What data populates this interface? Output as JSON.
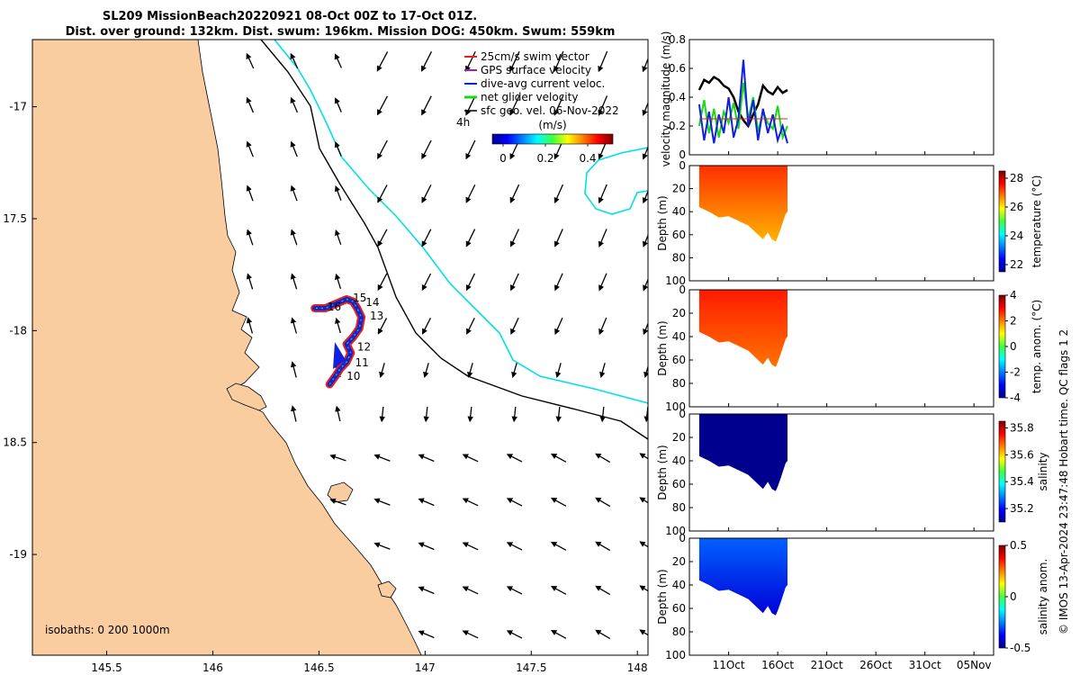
{
  "header": {
    "title_line1": "SL209 MissionBeach20220921 08-Oct 00Z to 17-Oct 01Z.",
    "title_line2": "Dist. over ground: 132km. Dist. swum: 196km. Mission DOG: 450km. Swum: 559km"
  },
  "colors": {
    "land": "#f9cda0",
    "isobath_200": "#000000",
    "isobath_1000": "#00e0e8",
    "swim_vector": "#e8201a",
    "gps_velocity": "#9a20c0",
    "current_velocity": "#1020e0",
    "net_velocity": "#18d818",
    "geo_velocity": "#000000",
    "line_color_black": "#000000"
  },
  "map": {
    "xlim": [
      145.15,
      148.05
    ],
    "ylim": [
      -19.45,
      -16.7
    ],
    "xticks": [
      145.5,
      146,
      146.5,
      147,
      147.5,
      148
    ],
    "xtick_labels": [
      "145.5",
      "146",
      "146.5",
      "147",
      "147.5",
      "148"
    ],
    "yticks": [
      -17,
      -17.5,
      -18,
      -18.5,
      -19
    ],
    "ytick_labels": [
      "-17",
      "17.5",
      "-18",
      "18.5",
      "-19"
    ],
    "isobaths_label": "isobaths: 0   200  1000m",
    "scale_label": "4h",
    "colorbar_title": "(m/s)",
    "colorbar_ticks": [
      "0",
      "0.2",
      "0.4"
    ],
    "day_labels": [
      {
        "text": "15",
        "lon": 146.66,
        "lat": -17.87
      },
      {
        "text": "14",
        "lon": 146.72,
        "lat": -17.89
      },
      {
        "text": "16",
        "lon": 146.54,
        "lat": -17.91
      },
      {
        "text": "13",
        "lon": 146.74,
        "lat": -17.95
      },
      {
        "text": "12",
        "lon": 146.68,
        "lat": -18.09
      },
      {
        "text": "11",
        "lon": 146.67,
        "lat": -18.16
      },
      {
        "text": "10",
        "lon": 146.63,
        "lat": -18.22
      }
    ],
    "legend": [
      {
        "label": "25cm/s swim vector",
        "color_key": "swim_vector"
      },
      {
        "label": "GPS surface velocity",
        "color_key": "gps_velocity"
      },
      {
        "label": "dive-avg current veloc.",
        "color_key": "current_velocity"
      },
      {
        "label": "net glider velocity",
        "color_key": "net_velocity"
      },
      {
        "label": "sfc geo. vel. 06-Nov-2022",
        "color_key": "geo_velocity"
      }
    ]
  },
  "chart_data": [
    {
      "type": "line",
      "name": "velocity",
      "ylabel": "velocity magnitude (m/s)",
      "ylim": [
        0,
        0.8
      ],
      "yticks": [
        "0",
        "0.2",
        "0.4",
        "0.6",
        "0.8"
      ],
      "x_days": [
        8.0,
        8.5,
        9.0,
        9.5,
        10.0,
        10.5,
        11.0,
        11.5,
        12.0,
        12.5,
        13.0,
        13.5,
        14.0,
        14.5,
        15.0,
        15.5,
        16.0,
        16.5,
        17.0
      ],
      "series": [
        {
          "name": "sfc geo. vel.",
          "color_key": "geo_velocity",
          "values": [
            0.45,
            0.52,
            0.5,
            0.54,
            0.52,
            0.48,
            0.46,
            0.4,
            0.3,
            0.24,
            0.2,
            0.28,
            0.35,
            0.48,
            0.44,
            0.42,
            0.47,
            0.43,
            0.45
          ]
        },
        {
          "name": "net glider velocity",
          "color_key": "net_velocity",
          "values": [
            0.2,
            0.38,
            0.15,
            0.32,
            0.12,
            0.3,
            0.22,
            0.36,
            0.18,
            0.5,
            0.25,
            0.4,
            0.16,
            0.3,
            0.22,
            0.18,
            0.34,
            0.12,
            0.2
          ]
        },
        {
          "name": "dive-avg current veloc.",
          "color_key": "current_velocity",
          "values": [
            0.35,
            0.1,
            0.3,
            0.08,
            0.28,
            0.15,
            0.4,
            0.12,
            0.25,
            0.66,
            0.2,
            0.38,
            0.1,
            0.32,
            0.15,
            0.28,
            0.1,
            0.2,
            0.08
          ]
        },
        {
          "name": "25cm/s swim vector",
          "color_key": "swim_vector",
          "values": [
            0.25,
            0.25,
            0.25,
            0.25,
            0.25,
            0.25,
            0.25,
            0.25,
            0.25,
            0.25,
            0.25,
            0.25,
            0.25,
            0.25,
            0.25,
            0.25,
            0.25,
            0.25,
            0.25
          ]
        }
      ]
    },
    {
      "type": "heatmap",
      "name": "temperature",
      "ylabel": "Depth (m)",
      "cbar_label": "temperature (°C)",
      "cbar_range": [
        21.5,
        28.5
      ],
      "cbar_ticks": [
        "22",
        "24",
        "26",
        "28"
      ],
      "ylim": [
        0,
        100
      ],
      "yticks": [
        "0",
        "20",
        "40",
        "60",
        "80",
        "100"
      ],
      "value_top": 27.3,
      "value_bottom": 26.4
    },
    {
      "type": "heatmap",
      "name": "temp_anom",
      "ylabel": "Depth (m)",
      "cbar_label": "temp. anom. (°C)",
      "cbar_range": [
        -4,
        4
      ],
      "cbar_ticks": [
        "4",
        "2",
        "0",
        "-2",
        "-4"
      ],
      "ylim": [
        0,
        100
      ],
      "yticks": [
        "0",
        "20",
        "40",
        "60",
        "80",
        "100"
      ],
      "value_top": 2.8,
      "value_bottom": 2.1
    },
    {
      "type": "heatmap",
      "name": "salinity",
      "ylabel": "Depth (m)",
      "cbar_label": "salinity",
      "cbar_range": [
        35.1,
        35.85
      ],
      "cbar_ticks": [
        "35.8",
        "35.6",
        "35.4",
        "35.2"
      ],
      "ylim": [
        0,
        100
      ],
      "yticks": [
        "0",
        "20",
        "40",
        "60",
        "80",
        "100"
      ],
      "value_top": 35.1,
      "value_bottom": 35.1
    },
    {
      "type": "heatmap",
      "name": "salinity_anom",
      "ylabel": "Depth (m)",
      "cbar_label": "salinity anom.",
      "cbar_range": [
        -0.5,
        0.5
      ],
      "cbar_ticks": [
        "0.5",
        "0",
        "-0.5"
      ],
      "ylim": [
        0,
        100
      ],
      "yticks": [
        "0",
        "20",
        "40",
        "60",
        "80",
        "100"
      ],
      "value_top": -0.28,
      "value_bottom": -0.42
    }
  ],
  "time_axis": {
    "range_days": [
      7,
      38
    ],
    "ticks": [
      11,
      16,
      21,
      26,
      31,
      36
    ],
    "labels": [
      "11Oct",
      "16Oct",
      "21Oct",
      "26Oct",
      "31Oct",
      "05Nov"
    ]
  },
  "footer": {
    "credit": "© IMOS 13-Apr-2024 23:47:48 Hobart time. QC flags 1  2"
  }
}
